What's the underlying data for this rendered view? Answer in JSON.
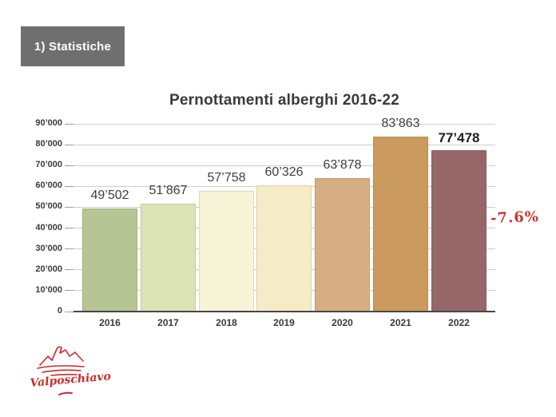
{
  "header": {
    "label": "1) Statistiche"
  },
  "colors": {
    "background": "#ffffff",
    "header_bg": "#706f6f",
    "header_text": "#ffffff",
    "title_text": "#3a3a3a",
    "axis": "#474747",
    "gridline": "#cdcdcd",
    "accent_red": "#cc352b"
  },
  "chart_data": {
    "type": "bar",
    "title": "Pernottamenti alberghi 2016-22",
    "xlabel": "",
    "ylabel": "",
    "categories": [
      "2016",
      "2017",
      "2018",
      "2019",
      "2020",
      "2021",
      "2022"
    ],
    "values": [
      49502,
      51867,
      57758,
      60326,
      63878,
      83863,
      77478
    ],
    "value_labels": [
      "49’502",
      "51’867",
      "57’758",
      "60’326",
      "63’878",
      "83’863",
      "77’478"
    ],
    "bar_colors": [
      "#b7c494",
      "#dce4b5",
      "#f6f3d6",
      "#f5ecc7",
      "#d7ae83",
      "#cb9a5f",
      "#966769"
    ],
    "ylim": [
      0,
      90000
    ],
    "ytick_step": 10000,
    "ytick_labels": [
      "0",
      "10’000",
      "20’000",
      "30’000",
      "40’000",
      "50’000",
      "60’000",
      "70’000",
      "80’000",
      "90’000"
    ],
    "grid": true,
    "legend": "none",
    "emphasized_index": 6,
    "annotation": {
      "text": "-7.6%",
      "applies_to": "2022"
    }
  },
  "logo": {
    "name": "Valposchiavo",
    "text": "Valposchiavo"
  }
}
